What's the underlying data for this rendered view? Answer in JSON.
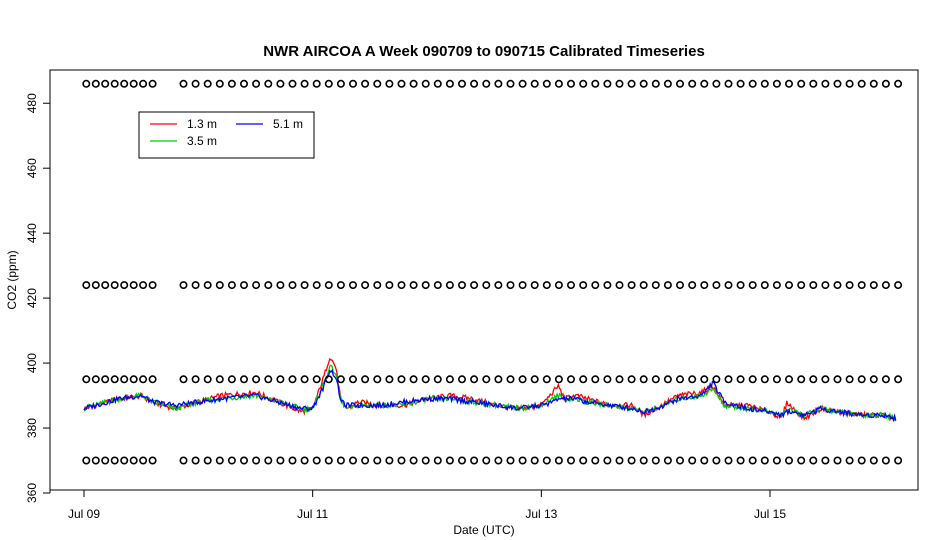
{
  "chart_data": {
    "type": "line",
    "title": "NWR AIRCOA A  Week 090709 to 090715  Calibrated Timeseries",
    "xlabel": "Date (UTC)",
    "ylabel": "CO2 (ppm)",
    "xlim": [
      0,
      7.2
    ],
    "ylim": [
      360,
      490
    ],
    "x_ticks": [
      {
        "value": 0,
        "label": "Jul 09"
      },
      {
        "value": 2,
        "label": "Jul 11"
      },
      {
        "value": 4,
        "label": "Jul 13"
      },
      {
        "value": 6,
        "label": "Jul 15"
      }
    ],
    "y_ticks": [
      360,
      380,
      400,
      420,
      440,
      460,
      480
    ],
    "legend": {
      "placement": "top-left",
      "entries": [
        {
          "label": "1.3 m",
          "color": "#ff0000"
        },
        {
          "label": "3.5 m",
          "color": "#00cd00"
        },
        {
          "label": "5.1 m",
          "color": "#0000ff"
        }
      ]
    },
    "series": [
      {
        "name": "1.3 m",
        "color": "#ff0000",
        "x": [
          0,
          0.1,
          0.3,
          0.5,
          0.6,
          0.8,
          1.0,
          1.2,
          1.5,
          1.7,
          1.9,
          2.0,
          2.1,
          2.15,
          2.2,
          2.25,
          2.3,
          2.4,
          2.6,
          2.8,
          3.0,
          3.2,
          3.4,
          3.6,
          3.8,
          4.0,
          4.1,
          4.15,
          4.2,
          4.3,
          4.4,
          4.6,
          4.8,
          4.9,
          5.0,
          5.2,
          5.4,
          5.5,
          5.6,
          5.8,
          6.0,
          6.1,
          6.15,
          6.2,
          6.3,
          6.45,
          6.6,
          6.8,
          7.0,
          7.1
        ],
        "y": [
          386,
          387,
          389,
          390,
          388,
          386,
          388,
          390,
          391,
          388,
          385,
          386,
          396,
          402,
          399,
          388,
          386,
          388,
          387,
          387,
          389,
          390,
          389,
          387,
          386,
          387,
          391,
          393,
          389,
          390,
          389,
          387,
          387,
          384,
          386,
          390,
          391,
          393,
          387,
          387,
          385,
          383,
          388,
          386,
          383,
          386,
          385,
          384,
          384,
          382
        ]
      },
      {
        "name": "3.5 m",
        "color": "#00cd00",
        "x": [
          0,
          0.1,
          0.3,
          0.5,
          0.6,
          0.8,
          1.0,
          1.2,
          1.5,
          1.7,
          1.9,
          2.0,
          2.1,
          2.15,
          2.2,
          2.25,
          2.3,
          2.4,
          2.6,
          2.8,
          3.0,
          3.2,
          3.4,
          3.6,
          3.8,
          4.0,
          4.1,
          4.15,
          4.2,
          4.3,
          4.4,
          4.6,
          4.8,
          4.9,
          5.0,
          5.2,
          5.4,
          5.5,
          5.6,
          5.8,
          6.0,
          6.1,
          6.15,
          6.2,
          6.3,
          6.45,
          6.6,
          6.8,
          7.0,
          7.1
        ],
        "y": [
          386,
          387,
          389,
          390,
          388,
          386,
          388,
          389,
          390,
          388,
          386,
          386,
          394,
          399,
          397,
          388,
          386,
          387,
          387,
          387,
          389,
          389,
          388,
          387,
          386,
          387,
          389,
          390,
          389,
          389,
          388,
          387,
          386,
          385,
          386,
          389,
          390,
          392,
          387,
          386,
          385,
          384,
          386,
          385,
          384,
          386,
          385,
          384,
          384,
          383
        ]
      },
      {
        "name": "5.1 m",
        "color": "#0000ff",
        "x": [
          0,
          0.1,
          0.3,
          0.5,
          0.6,
          0.8,
          1.0,
          1.2,
          1.5,
          1.7,
          1.9,
          2.0,
          2.1,
          2.15,
          2.2,
          2.25,
          2.3,
          2.4,
          2.6,
          2.8,
          3.0,
          3.2,
          3.4,
          3.6,
          3.8,
          4.0,
          4.1,
          4.15,
          4.2,
          4.3,
          4.4,
          4.6,
          4.8,
          4.9,
          5.0,
          5.2,
          5.4,
          5.5,
          5.6,
          5.8,
          6.0,
          6.1,
          6.15,
          6.2,
          6.3,
          6.45,
          6.6,
          6.8,
          7.0,
          7.1
        ],
        "y": [
          386,
          387,
          389,
          390,
          388,
          387,
          388,
          389,
          390,
          388,
          386,
          386,
          393,
          398,
          396,
          388,
          387,
          387,
          387,
          388,
          389,
          389,
          388,
          387,
          386,
          387,
          388,
          389,
          389,
          389,
          388,
          387,
          386,
          385,
          386,
          389,
          390,
          394,
          388,
          386,
          385,
          384,
          385,
          385,
          384,
          386,
          385,
          384,
          384,
          383
        ]
      },
      {
        "name": "",
        "marker": "circle",
        "color": "#000000",
        "points": [
          {
            "x_start": 0.02,
            "x_end": 0.6,
            "y": 486,
            "n": 8
          },
          {
            "x_start": 0.87,
            "x_end": 7.12,
            "y": 486,
            "n": 60
          },
          {
            "x_start": 0.02,
            "x_end": 0.6,
            "y": 424,
            "n": 8
          },
          {
            "x_start": 0.87,
            "x_end": 7.12,
            "y": 424,
            "n": 60
          },
          {
            "x_start": 0.02,
            "x_end": 0.6,
            "y": 395,
            "n": 8
          },
          {
            "x_start": 0.87,
            "x_end": 7.12,
            "y": 395,
            "n": 60
          },
          {
            "x_start": 0.02,
            "x_end": 0.6,
            "y": 370,
            "n": 8
          },
          {
            "x_start": 0.87,
            "x_end": 7.12,
            "y": 370,
            "n": 60
          }
        ]
      }
    ]
  }
}
